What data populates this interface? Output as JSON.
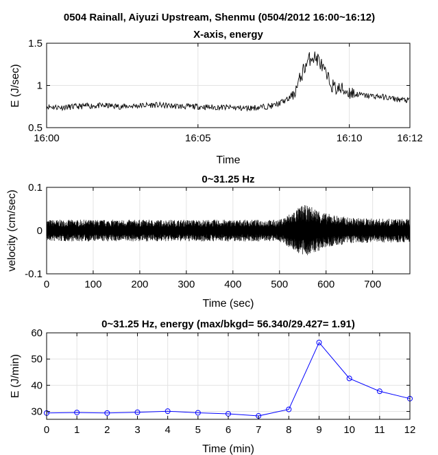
{
  "figure": {
    "suptitle": "0504 Rainall, Aiyuzi Upstream, Shenmu (0504/2012 16:00~16:12)"
  },
  "chart_data": [
    {
      "type": "line",
      "title": "X-axis, energy",
      "xlabel": "Time",
      "ylabel": "E (J/sec)",
      "xlim": [
        "16:00",
        "16:12"
      ],
      "ylim": [
        0.5,
        1.5
      ],
      "xticks": [
        "16:00",
        "16:05",
        "16:10",
        "16:12"
      ],
      "yticks": [
        "0.5",
        "1",
        "1.5"
      ],
      "grid": true,
      "line_color": "#000000",
      "series": [
        {
          "x": [
            "16:00:00",
            "16:00:30",
            "16:01:00",
            "16:01:30",
            "16:02:00",
            "16:02:30",
            "16:03:00",
            "16:03:30",
            "16:04:00",
            "16:04:30",
            "16:05:00",
            "16:05:30",
            "16:06:00",
            "16:06:30",
            "16:07:00",
            "16:07:30",
            "16:08:00",
            "16:08:15",
            "16:08:30",
            "16:08:45",
            "16:09:00",
            "16:09:15",
            "16:09:30",
            "16:09:45",
            "16:10:00",
            "16:10:30",
            "16:11:00",
            "16:11:30",
            "16:12:00"
          ],
          "values": [
            0.75,
            0.74,
            0.75,
            0.76,
            0.76,
            0.75,
            0.76,
            0.77,
            0.76,
            0.75,
            0.75,
            0.74,
            0.74,
            0.73,
            0.74,
            0.76,
            0.84,
            0.96,
            1.2,
            1.35,
            1.3,
            1.1,
            0.97,
            0.95,
            0.92,
            0.88,
            0.87,
            0.84,
            0.82
          ]
        }
      ]
    },
    {
      "type": "line",
      "title": "0~31.25 Hz",
      "xlabel": "Time (sec)",
      "ylabel": "velocity (cm/sec)",
      "xlim": [
        0,
        780
      ],
      "ylim": [
        -0.1,
        0.1
      ],
      "xticks": [
        "0",
        "100",
        "200",
        "300",
        "400",
        "500",
        "600",
        "700"
      ],
      "yticks": [
        "-0.1",
        "0",
        "0.1"
      ],
      "grid": true,
      "line_color": "#000000",
      "series": [
        {
          "x": [
            0,
            100,
            200,
            300,
            400,
            500,
            530,
            550,
            570,
            600,
            650,
            700,
            780
          ],
          "amplitude": [
            0.025,
            0.025,
            0.025,
            0.025,
            0.025,
            0.025,
            0.045,
            0.06,
            0.055,
            0.04,
            0.03,
            0.028,
            0.027
          ]
        }
      ]
    },
    {
      "type": "line",
      "title": "0~31.25 Hz, energy (max/bkgd= 56.340/29.427= 1.91)",
      "xlabel": "Time (min)",
      "ylabel": "E (J/min)",
      "xlim": [
        0,
        12
      ],
      "ylim": [
        27,
        60
      ],
      "xticks": [
        "0",
        "1",
        "2",
        "3",
        "4",
        "5",
        "6",
        "7",
        "8",
        "9",
        "10",
        "11",
        "12"
      ],
      "yticks": [
        "30",
        "40",
        "50",
        "60"
      ],
      "grid": true,
      "marker": "circle",
      "line_color": "#0000ff",
      "series": [
        {
          "x": [
            0,
            1,
            2,
            3,
            4,
            5,
            6,
            7,
            8,
            9,
            10,
            11,
            12
          ],
          "values": [
            29.4,
            29.6,
            29.4,
            29.7,
            30.1,
            29.5,
            29.1,
            28.3,
            30.8,
            56.3,
            42.6,
            37.7,
            34.9
          ]
        }
      ]
    }
  ]
}
